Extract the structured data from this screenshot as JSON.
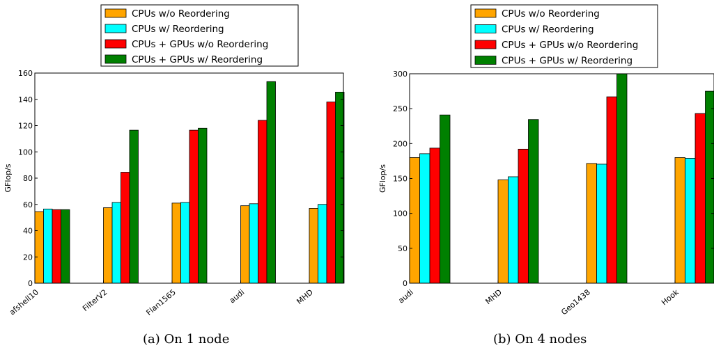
{
  "chart_data": [
    {
      "type": "bar",
      "caption": "(a) On 1 node",
      "ylabel": "GFlop/s",
      "ylim": [
        0,
        160
      ],
      "yticks": [
        0,
        20,
        40,
        60,
        80,
        100,
        120,
        140,
        160
      ],
      "categories": [
        "afshell10",
        "FilterV2",
        "Flan1565",
        "audi",
        "MHD"
      ],
      "series": [
        {
          "name": "CPUs w/o Reordering",
          "color": "#FFA500",
          "values": [
            54.5,
            57.5,
            61,
            59,
            57
          ]
        },
        {
          "name": "CPUs w/ Reordering",
          "color": "#00FFFF",
          "values": [
            56.5,
            61.5,
            61.5,
            60.5,
            60
          ]
        },
        {
          "name": "CPUs + GPUs w/o Reordering",
          "color": "#FF0000",
          "values": [
            56,
            84.5,
            116.5,
            124,
            138
          ]
        },
        {
          "name": "CPUs + GPUs w/ Reordering",
          "color": "#008000",
          "values": [
            56,
            116.5,
            118,
            153.5,
            145.5
          ]
        }
      ],
      "legend_placement": "top-center",
      "grid": false
    },
    {
      "type": "bar",
      "caption": "(b) On 4 nodes",
      "ylabel": "GFlop/s",
      "ylim": [
        0,
        300
      ],
      "yticks": [
        0,
        50,
        100,
        150,
        200,
        250,
        300
      ],
      "categories": [
        "audi",
        "MHD",
        "Geo1438",
        "Hook"
      ],
      "series": [
        {
          "name": "CPUs w/o Reordering",
          "color": "#FFA500",
          "values": [
            180,
            148,
            171.5,
            180
          ]
        },
        {
          "name": "CPUs w/ Reordering",
          "color": "#00FFFF",
          "values": [
            185.5,
            152.5,
            170.5,
            179
          ]
        },
        {
          "name": "CPUs + GPUs w/o Reordering",
          "color": "#FF0000",
          "values": [
            193.5,
            192,
            267,
            243
          ]
        },
        {
          "name": "CPUs + GPUs w/ Reordering",
          "color": "#008000",
          "values": [
            241,
            234.5,
            300,
            275
          ]
        }
      ],
      "legend_placement": "top-center",
      "grid": false
    }
  ]
}
